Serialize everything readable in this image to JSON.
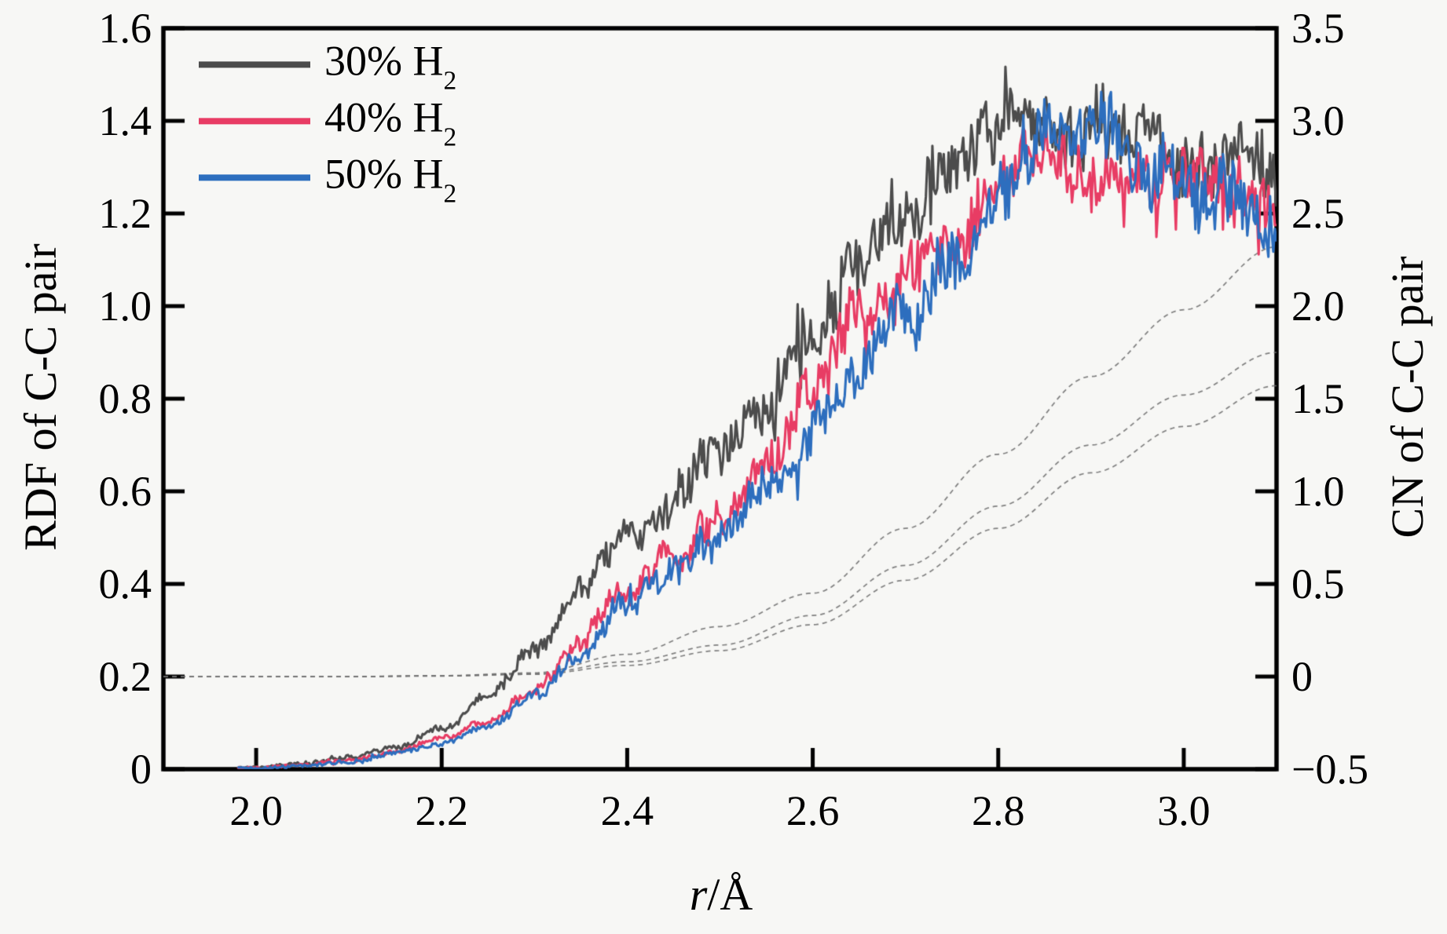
{
  "chart_data": {
    "type": "line",
    "title": "",
    "xlabel": "r/Å",
    "xlabel_italic": "r",
    "xlabel_rest": "/Å",
    "ylabel_left": "RDF of C-C pair",
    "ylabel_right": "CN of C-C pair",
    "xlim": [
      1.9,
      3.1
    ],
    "ylim_left": [
      0,
      1.6
    ],
    "ylim_right": [
      -0.5,
      3.5
    ],
    "grid": false,
    "legend_position": "top-left",
    "colors": {
      "background": "#f7f7f5",
      "axis": "#000000",
      "cn_line": "#707070",
      "series_30": "#4c4c4c",
      "series_40": "#e83c64",
      "series_50": "#2d6ebe"
    },
    "x_ticks": [
      {
        "v": 2.0,
        "label": "2.0"
      },
      {
        "v": 2.2,
        "label": "2.2"
      },
      {
        "v": 2.4,
        "label": "2.4"
      },
      {
        "v": 2.6,
        "label": "2.6"
      },
      {
        "v": 2.8,
        "label": "2.8"
      },
      {
        "v": 3.0,
        "label": "3.0"
      }
    ],
    "left_ticks": [
      {
        "v": 0.0,
        "label": "0"
      },
      {
        "v": 0.2,
        "label": "0.2"
      },
      {
        "v": 0.4,
        "label": "0.4"
      },
      {
        "v": 0.6,
        "label": "0.6"
      },
      {
        "v": 0.8,
        "label": "0.8"
      },
      {
        "v": 1.0,
        "label": "1.0"
      },
      {
        "v": 1.2,
        "label": "1.2"
      },
      {
        "v": 1.4,
        "label": "1.4"
      },
      {
        "v": 1.6,
        "label": "1.6"
      }
    ],
    "right_ticks": [
      {
        "v": -0.5,
        "label": "−0.5"
      },
      {
        "v": 0.0,
        "label": "0"
      },
      {
        "v": 0.5,
        "label": "0.5"
      },
      {
        "v": 1.0,
        "label": "1.0"
      },
      {
        "v": 1.5,
        "label": "1.5"
      },
      {
        "v": 2.0,
        "label": "2.0"
      },
      {
        "v": 2.5,
        "label": "2.5"
      },
      {
        "v": 3.0,
        "label": "3.0"
      },
      {
        "v": 3.5,
        "label": "3.5"
      }
    ],
    "legend": [
      {
        "main": "30% H",
        "sub": "2",
        "color": "#4c4c4c"
      },
      {
        "main": "40% H",
        "sub": "2",
        "color": "#e83c64"
      },
      {
        "main": "50% H",
        "sub": "2",
        "color": "#2d6ebe"
      }
    ],
    "rdf_r": [
      1.9,
      1.95,
      2.0,
      2.05,
      2.1,
      2.15,
      2.2,
      2.25,
      2.3,
      2.35,
      2.4,
      2.45,
      2.5,
      2.55,
      2.6,
      2.65,
      2.7,
      2.75,
      2.8,
      2.85,
      2.9,
      2.95,
      3.0,
      3.05,
      3.1
    ],
    "series_rdf": [
      {
        "name": "30% H2",
        "axis": "left",
        "color": "#4c4c4c",
        "noise": 0.058,
        "seed": 11,
        "values": [
          0,
          0,
          0.004,
          0.012,
          0.025,
          0.048,
          0.09,
          0.16,
          0.27,
          0.38,
          0.5,
          0.59,
          0.67,
          0.78,
          0.93,
          1.08,
          1.2,
          1.3,
          1.37,
          1.38,
          1.37,
          1.36,
          1.35,
          1.32,
          1.3
        ]
      },
      {
        "name": "40% H2",
        "axis": "left",
        "color": "#e83c64",
        "noise": 0.055,
        "seed": 23,
        "values": [
          0,
          0,
          0.003,
          0.009,
          0.02,
          0.038,
          0.065,
          0.105,
          0.17,
          0.27,
          0.39,
          0.47,
          0.55,
          0.65,
          0.81,
          0.97,
          1.08,
          1.18,
          1.28,
          1.33,
          1.3,
          1.28,
          1.27,
          1.24,
          1.22
        ]
      },
      {
        "name": "50% H2",
        "axis": "left",
        "color": "#2d6ebe",
        "noise": 0.062,
        "seed": 37,
        "values": [
          0,
          0,
          0.002,
          0.007,
          0.016,
          0.032,
          0.055,
          0.09,
          0.155,
          0.25,
          0.36,
          0.44,
          0.52,
          0.6,
          0.7,
          0.85,
          0.98,
          1.09,
          1.21,
          1.36,
          1.43,
          1.33,
          1.29,
          1.25,
          1.2
        ]
      }
    ],
    "cn_r": [
      1.9,
      2.0,
      2.1,
      2.2,
      2.3,
      2.4,
      2.5,
      2.6,
      2.7,
      2.8,
      2.9,
      3.0,
      3.1
    ],
    "series_cn": [
      {
        "name": "CN 30% H2",
        "axis": "right",
        "values": [
          0,
          0,
          0,
          0.005,
          0.02,
          0.12,
          0.27,
          0.45,
          0.8,
          1.2,
          1.62,
          1.98,
          2.32
        ]
      },
      {
        "name": "CN 40% H2",
        "axis": "right",
        "values": [
          0,
          0,
          0,
          0.004,
          0.015,
          0.08,
          0.17,
          0.33,
          0.6,
          0.92,
          1.25,
          1.52,
          1.75
        ]
      },
      {
        "name": "CN 50% H2",
        "axis": "right",
        "values": [
          0,
          0,
          0,
          0.003,
          0.012,
          0.06,
          0.14,
          0.28,
          0.52,
          0.8,
          1.1,
          1.35,
          1.57
        ]
      }
    ]
  }
}
